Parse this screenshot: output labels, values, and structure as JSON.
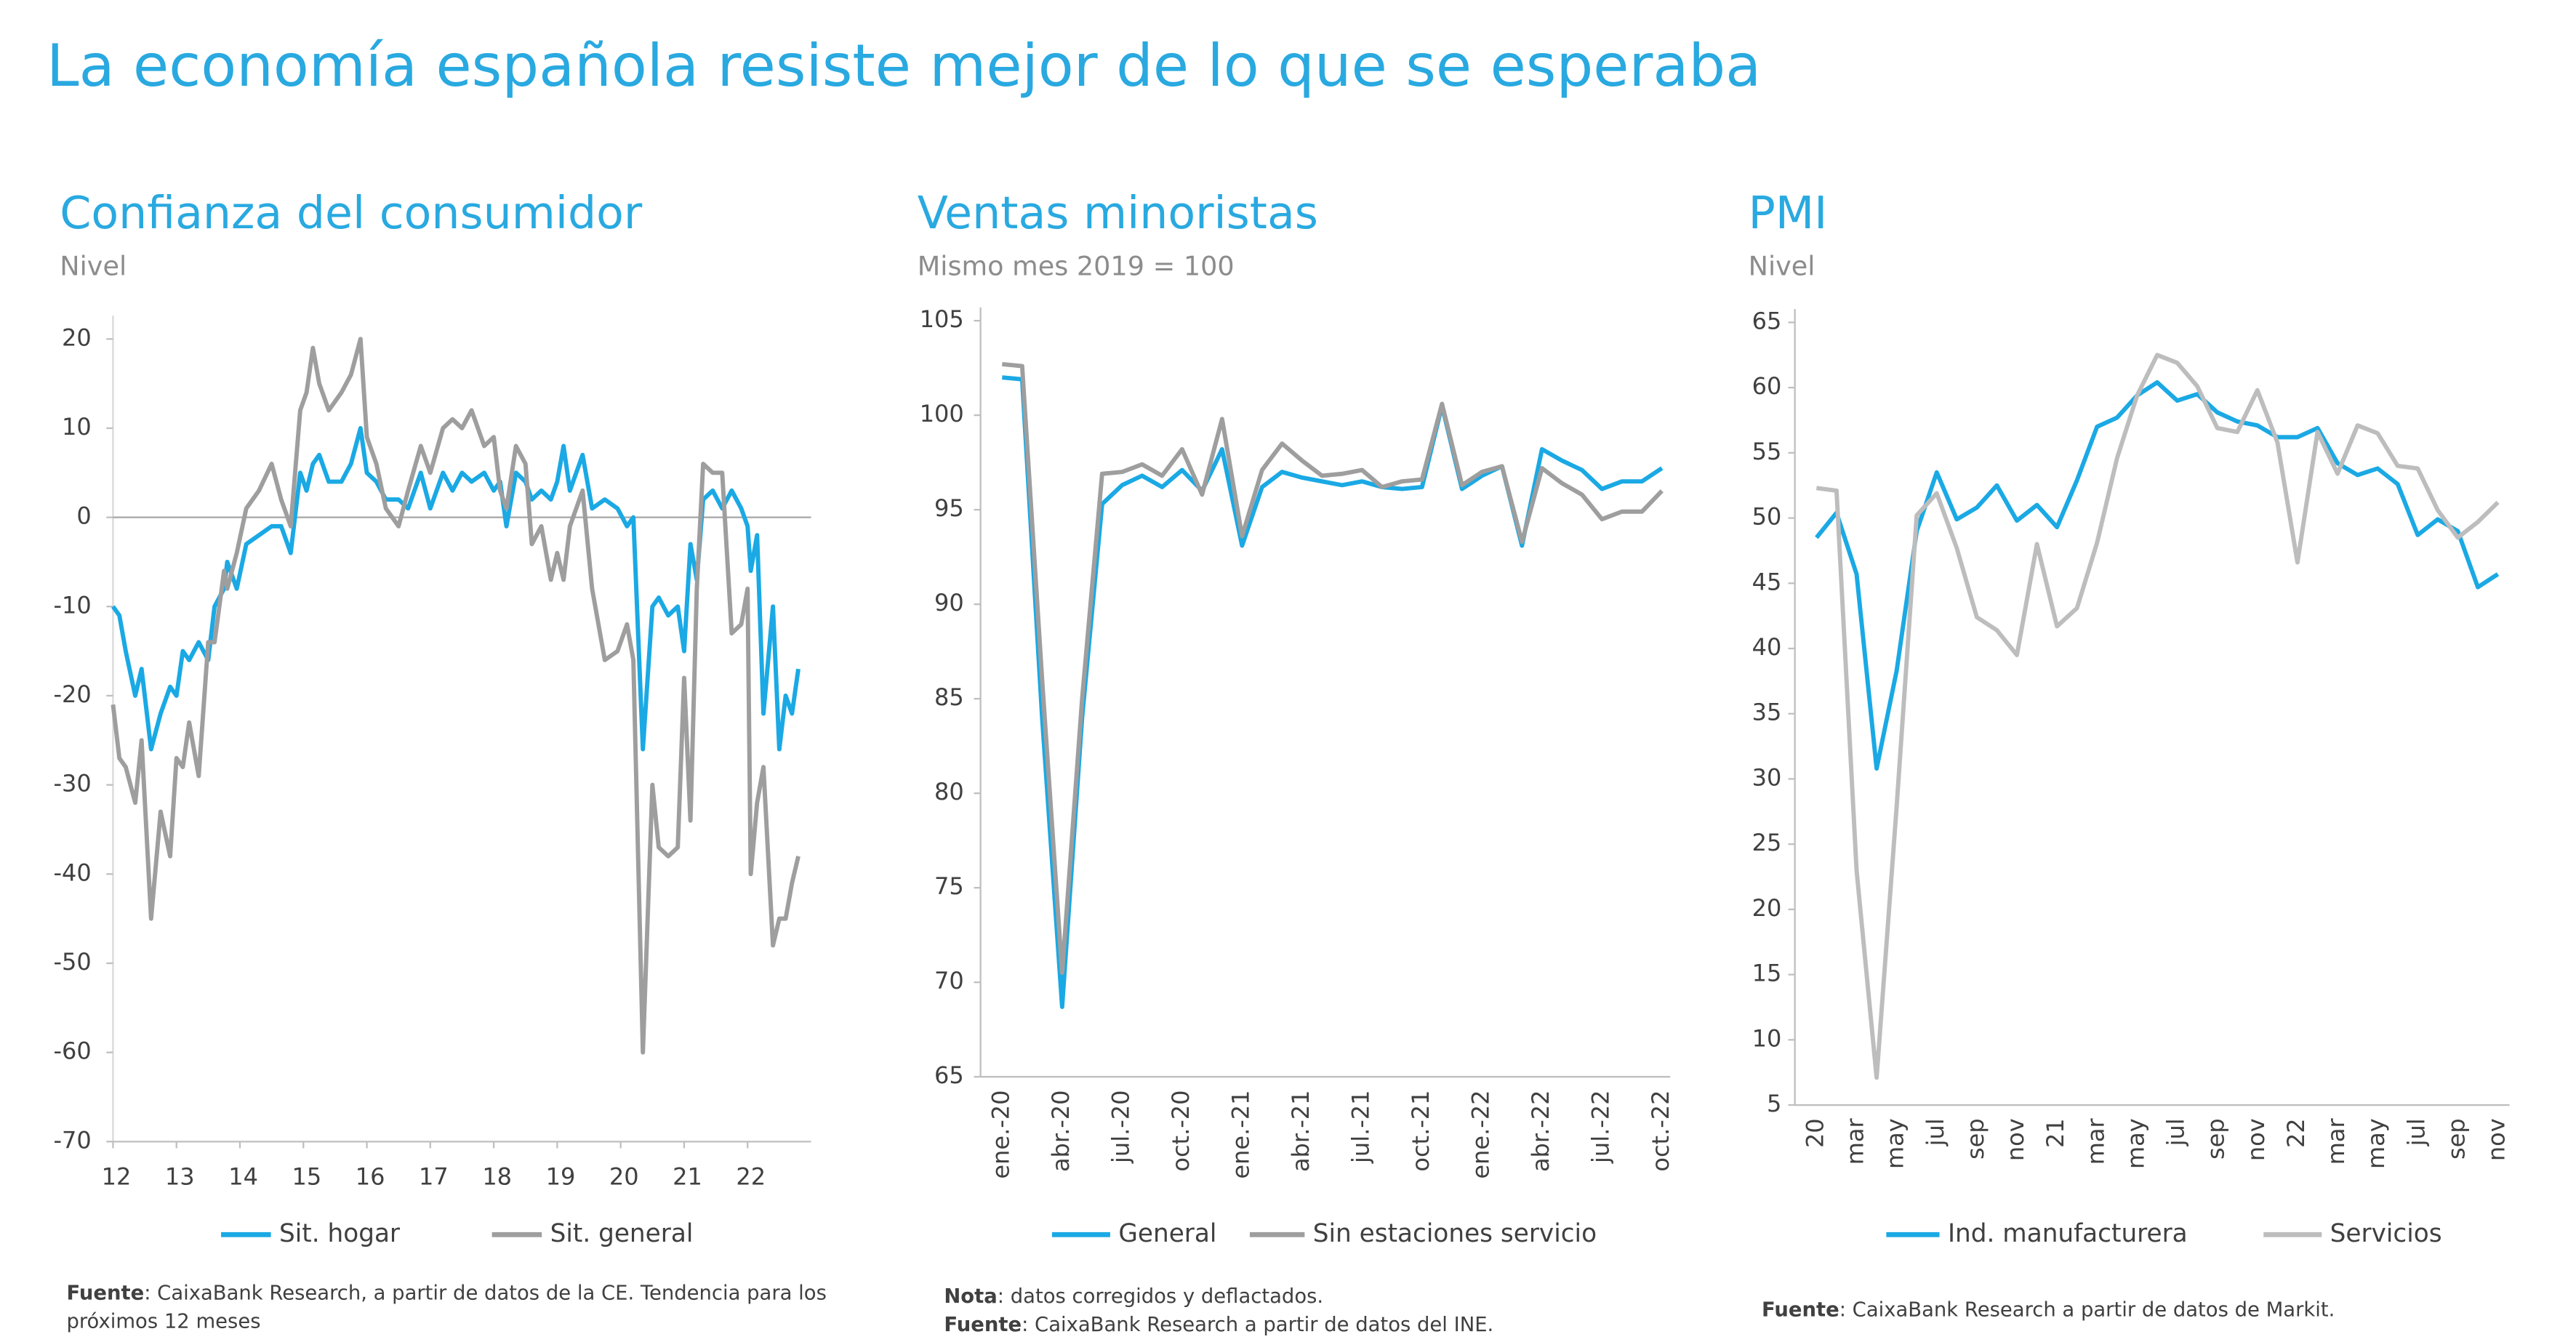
{
  "title": "La economía española resiste mejor de lo que se esperaba",
  "chart_data": [
    {
      "type": "line",
      "title": "Confianza del consumidor",
      "subtitle": "Nivel",
      "x": [
        12,
        12.1,
        12.2,
        12.35,
        12.45,
        12.6,
        12.75,
        12.9,
        13,
        13.1,
        13.2,
        13.35,
        13.5,
        13.6,
        13.75,
        13.8,
        13.95,
        14.1,
        14.3,
        14.5,
        14.65,
        14.8,
        14.95,
        15.05,
        15.15,
        15.25,
        15.4,
        15.6,
        15.75,
        15.9,
        16,
        16.15,
        16.3,
        16.5,
        16.65,
        16.85,
        17,
        17.2,
        17.35,
        17.5,
        17.65,
        17.85,
        18,
        18.1,
        18.2,
        18.35,
        18.5,
        18.6,
        18.75,
        18.9,
        19,
        19.1,
        19.2,
        19.4,
        19.55,
        19.75,
        19.95,
        20.1,
        20.2,
        20.35,
        20.5,
        20.6,
        20.75,
        20.9,
        21,
        21.1,
        21.2,
        21.3,
        21.45,
        21.6,
        21.75,
        21.9,
        22,
        22.05,
        22.15,
        22.25,
        22.4,
        22.5,
        22.6,
        22.7,
        22.8
      ],
      "series": [
        {
          "name": "Sit. hogar",
          "color": "#1aa9e4",
          "values": [
            -10,
            -11,
            -15,
            -20,
            -17,
            -26,
            -22,
            -19,
            -20,
            -15,
            -16,
            -14,
            -16,
            -10,
            -8,
            -5,
            -8,
            -3,
            -2,
            -1,
            -1,
            -4,
            5,
            3,
            6,
            7,
            4,
            4,
            6,
            10,
            5,
            4,
            2,
            2,
            1,
            5,
            1,
            5,
            3,
            5,
            4,
            5,
            3,
            4,
            -1,
            5,
            4,
            2,
            3,
            2,
            4,
            8,
            3,
            7,
            1,
            2,
            1,
            -1,
            0,
            -26,
            -10,
            -9,
            -11,
            -10,
            -15,
            -3,
            -7,
            2,
            3,
            1,
            3,
            1,
            -1,
            -6,
            -2,
            -22,
            -10,
            -26,
            -20,
            -22,
            -17
          ]
        },
        {
          "name": "Sit. general",
          "color": "#9e9e9e",
          "values": [
            -21,
            -27,
            -28,
            -32,
            -25,
            -45,
            -33,
            -38,
            -27,
            -28,
            -23,
            -29,
            -14,
            -14,
            -6,
            -8,
            -4,
            1,
            3,
            6,
            2,
            -1,
            12,
            14,
            19,
            15,
            12,
            14,
            16,
            20,
            9,
            6,
            1,
            -1,
            3,
            8,
            5,
            10,
            11,
            10,
            12,
            8,
            9,
            3,
            1,
            8,
            6,
            -3,
            -1,
            -7,
            -4,
            -7,
            -1,
            3,
            -8,
            -16,
            -15,
            -12,
            -16,
            -60,
            -30,
            -37,
            -38,
            -37,
            -18,
            -34,
            -8,
            6,
            5,
            5,
            -13,
            -12,
            -8,
            -40,
            -32,
            -28,
            -48,
            -45,
            -45,
            -41,
            -38
          ]
        }
      ],
      "xlim": [
        12,
        23
      ],
      "xticks": [
        12,
        13,
        14,
        15,
        16,
        17,
        18,
        19,
        20,
        21,
        22
      ],
      "ylim": [
        -70,
        20
      ],
      "yticks": [
        -70,
        -60,
        -50,
        -40,
        -30,
        -20,
        -10,
        0,
        10,
        20
      ],
      "notes": [
        {
          "label": "Fuente",
          "text": ": CaixaBank Research, a partir de datos de la CE. Tendencia para los próximos 12 meses"
        }
      ]
    },
    {
      "type": "line",
      "title": "Ventas minoristas",
      "subtitle": "Mismo mes 2019 = 100",
      "categories": [
        "ene.-20",
        null,
        null,
        "abr.-20",
        null,
        null,
        "jul.-20",
        null,
        null,
        "oct.-20",
        null,
        null,
        "ene.-21",
        null,
        null,
        "abr.-21",
        null,
        null,
        "jul.-21",
        null,
        null,
        "oct.-21",
        null,
        null,
        "ene.-22",
        null,
        null,
        "abr.-22",
        null,
        null,
        "jul.-22",
        null,
        null,
        "oct.-22"
      ],
      "series": [
        {
          "name": "General",
          "color": "#1aa9e4",
          "values": [
            102,
            101.9,
            84,
            68.7,
            84,
            95.3,
            96.3,
            96.8,
            96.2,
            97.1,
            96,
            98.2,
            93.1,
            96.2,
            97,
            96.7,
            96.5,
            96.3,
            96.5,
            96.2,
            96.1,
            96.2,
            100.5,
            96.1,
            96.8,
            97.3,
            93.1,
            98.2,
            97.6,
            97.1,
            96.1,
            96.5,
            96.5,
            97.2
          ]
        },
        {
          "name": "Sin estaciones servicio",
          "color": "#9e9e9e",
          "values": [
            102.7,
            102.6,
            86,
            70.5,
            85,
            96.9,
            97,
            97.4,
            96.8,
            98.2,
            95.8,
            99.8,
            93.6,
            97.1,
            98.5,
            97.6,
            96.8,
            96.9,
            97.1,
            96.2,
            96.5,
            96.6,
            100.6,
            96.3,
            97,
            97.3,
            93.3,
            97.2,
            96.4,
            95.8,
            94.5,
            94.9,
            94.9,
            96
          ]
        }
      ],
      "ylim": [
        65,
        105
      ],
      "yticks": [
        65,
        70,
        75,
        80,
        85,
        90,
        95,
        100,
        105
      ],
      "notes": [
        {
          "label": "Nota",
          "text": ": datos corregidos y deflactados."
        },
        {
          "label": "Fuente",
          "text": ": CaixaBank Research a partir de datos del INE."
        }
      ]
    },
    {
      "type": "line",
      "title": "PMI",
      "subtitle": "Nivel",
      "categories": [
        "20",
        null,
        "mar",
        null,
        "may",
        null,
        "jul",
        null,
        "sep",
        null,
        "nov",
        null,
        "21",
        null,
        "mar",
        null,
        "may",
        null,
        "jul",
        null,
        "sep",
        null,
        "nov",
        null,
        "22",
        null,
        "mar",
        null,
        "may",
        null,
        "jul",
        null,
        "sep",
        null,
        "nov"
      ],
      "series": [
        {
          "name": "Ind. manufacturera",
          "color": "#1aa9e4",
          "values": [
            48.5,
            50.4,
            45.7,
            30.8,
            38.3,
            49,
            53.5,
            49.9,
            50.8,
            52.5,
            49.8,
            51,
            49.3,
            52.9,
            57,
            57.7,
            59.4,
            60.4,
            59,
            59.5,
            58.1,
            57.4,
            57.1,
            56.2,
            56.2,
            56.9,
            54.2,
            53.3,
            53.8,
            52.6,
            48.7,
            49.9,
            49,
            44.7,
            45.7
          ]
        },
        {
          "name": "Servicios",
          "color": "#bdbdbd",
          "values": [
            52.3,
            52.1,
            23,
            7.1,
            27.9,
            50.2,
            51.9,
            47.7,
            42.4,
            41.4,
            39.5,
            48,
            41.7,
            43.1,
            48.1,
            54.6,
            59.4,
            62.5,
            61.9,
            60.1,
            56.9,
            56.6,
            59.8,
            55.8,
            46.6,
            56.6,
            53.4,
            57.1,
            56.5,
            54,
            53.8,
            50.6,
            48.5,
            49.7,
            51.2
          ]
        }
      ],
      "ylim": [
        5,
        65
      ],
      "yticks": [
        5,
        10,
        15,
        20,
        25,
        30,
        35,
        40,
        45,
        50,
        55,
        60,
        65
      ],
      "notes": [
        {
          "label": "Fuente",
          "text": ": CaixaBank Research a partir de datos de Markit."
        }
      ]
    }
  ]
}
